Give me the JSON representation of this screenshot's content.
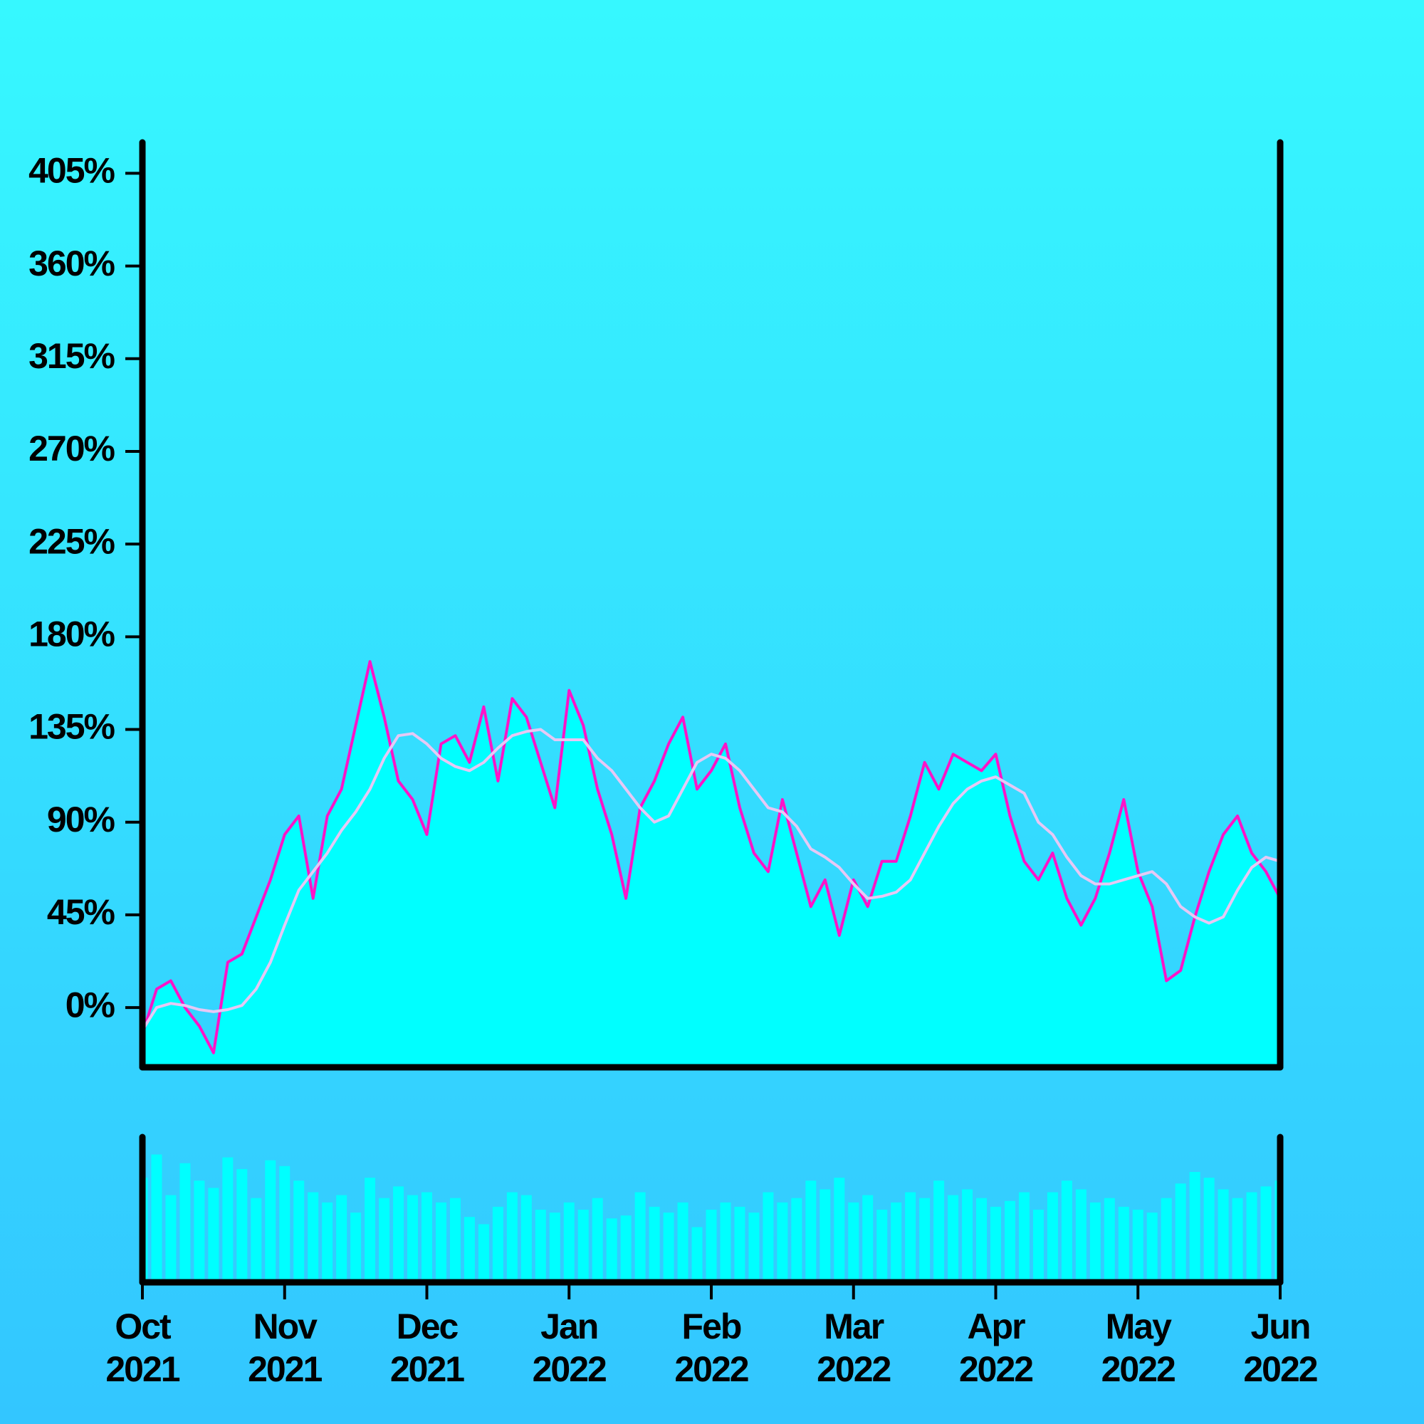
{
  "chart_data": [
    {
      "type": "line",
      "x": [
        0,
        0.1,
        0.2,
        0.3,
        0.4,
        0.5,
        0.6,
        0.7,
        0.8,
        0.9,
        1,
        1.1,
        1.2,
        1.3,
        1.4,
        1.5,
        1.6,
        1.7,
        1.8,
        1.9,
        2,
        2.1,
        2.2,
        2.3,
        2.4,
        2.5,
        2.6,
        2.7,
        2.8,
        2.9,
        3,
        3.1,
        3.2,
        3.3,
        3.4,
        3.5,
        3.6,
        3.7,
        3.8,
        3.9,
        4,
        4.1,
        4.2,
        4.3,
        4.4,
        4.5,
        4.6,
        4.7,
        4.8,
        4.9,
        5,
        5.1,
        5.2,
        5.3,
        5.4,
        5.5,
        5.6,
        5.7,
        5.8,
        5.9,
        6,
        6.1,
        6.2,
        6.3,
        6.4,
        6.5,
        6.6,
        6.7,
        6.8,
        6.9,
        7,
        7.1,
        7.2,
        7.3,
        7.4,
        7.5,
        7.6,
        7.7,
        7.8,
        7.9,
        8
      ],
      "series": [
        {
          "color": "#ff14c8",
          "area_color": "#00ffff",
          "values": [
            -13,
            9,
            13,
            0,
            -9,
            -22,
            22,
            26,
            44,
            62,
            84,
            93,
            53,
            93,
            106,
            137,
            168,
            141,
            110,
            101,
            84,
            128,
            132,
            119,
            146,
            110,
            150,
            141,
            119,
            97,
            154,
            137,
            106,
            84,
            53,
            97,
            110,
            128,
            141,
            106,
            115,
            128,
            97,
            75,
            66,
            101,
            75,
            49,
            62,
            35,
            62,
            49,
            71,
            71,
            93,
            119,
            106,
            123,
            119,
            115,
            123,
            93,
            71,
            62,
            75,
            53,
            40,
            53,
            75,
            101,
            66,
            49,
            13,
            18,
            44,
            66,
            84,
            93,
            75,
            66,
            53
          ]
        },
        {
          "color": "#e6c8f5",
          "values": [
            -11,
            0,
            2,
            1,
            -1,
            -2,
            -1,
            1,
            9,
            22,
            40,
            57,
            66,
            75,
            86,
            95,
            106,
            121,
            132,
            133,
            128,
            121,
            117,
            115,
            119,
            126,
            132,
            134,
            135,
            130,
            130,
            130,
            121,
            115,
            106,
            97,
            90,
            93,
            106,
            119,
            123,
            121,
            115,
            106,
            97,
            95,
            88,
            77,
            73,
            68,
            60,
            53,
            54,
            56,
            62,
            75,
            88,
            99,
            106,
            110,
            112,
            108,
            104,
            90,
            84,
            73,
            64,
            60,
            60,
            62,
            64,
            66,
            60,
            49,
            44,
            41,
            44,
            57,
            68,
            73,
            71
          ]
        }
      ],
      "xlim": [
        0,
        8
      ],
      "ylim": [
        -29,
        420
      ],
      "yticks": [
        {
          "value": 0,
          "label": "0%"
        },
        {
          "value": 45,
          "label": "45%"
        },
        {
          "value": 90,
          "label": "90%"
        },
        {
          "value": 135,
          "label": "135%"
        },
        {
          "value": 180,
          "label": "180%"
        },
        {
          "value": 225,
          "label": "225%"
        },
        {
          "value": 270,
          "label": "270%"
        },
        {
          "value": 315,
          "label": "315%"
        },
        {
          "value": 360,
          "label": "360%"
        },
        {
          "value": 405,
          "label": "405%"
        }
      ],
      "grid": false
    },
    {
      "type": "bar",
      "x": [
        0,
        0.1,
        0.2,
        0.3,
        0.4,
        0.5,
        0.6,
        0.7,
        0.8,
        0.9,
        1,
        1.1,
        1.2,
        1.3,
        1.4,
        1.5,
        1.6,
        1.7,
        1.8,
        1.9,
        2,
        2.1,
        2.2,
        2.3,
        2.4,
        2.5,
        2.6,
        2.7,
        2.8,
        2.9,
        3,
        3.1,
        3.2,
        3.3,
        3.4,
        3.5,
        3.6,
        3.7,
        3.8,
        3.9,
        4,
        4.1,
        4.2,
        4.3,
        4.4,
        4.5,
        4.6,
        4.7,
        4.8,
        4.9,
        5,
        5.1,
        5.2,
        5.3,
        5.4,
        5.5,
        5.6,
        5.7,
        5.8,
        5.9,
        6,
        6.1,
        6.2,
        6.3,
        6.4,
        6.5,
        6.6,
        6.7,
        6.8,
        6.9,
        7,
        7.1,
        7.2,
        7.3,
        7.4,
        7.5,
        7.6,
        7.7,
        7.8,
        7.9,
        8
      ],
      "values": [
        72,
        88,
        60,
        82,
        70,
        65,
        86,
        78,
        58,
        84,
        80,
        70,
        62,
        55,
        60,
        48,
        72,
        58,
        66,
        60,
        62,
        55,
        58,
        45,
        40,
        52,
        62,
        60,
        50,
        48,
        55,
        50,
        58,
        44,
        46,
        62,
        52,
        48,
        55,
        38,
        50,
        55,
        52,
        48,
        62,
        55,
        58,
        70,
        64,
        72,
        55,
        60,
        50,
        55,
        62,
        58,
        70,
        60,
        64,
        58,
        52,
        56,
        62,
        50,
        62,
        70,
        64,
        55,
        58,
        52,
        50,
        48,
        58,
        68,
        76,
        72,
        64,
        58,
        62,
        66,
        70
      ],
      "color": "#00ffff",
      "xlim": [
        0,
        8
      ],
      "ylim": [
        0,
        100
      ],
      "xticks": [
        {
          "value": 0,
          "label": [
            "Oct",
            "2021"
          ]
        },
        {
          "value": 1,
          "label": [
            "Nov",
            "2021"
          ]
        },
        {
          "value": 2,
          "label": [
            "Dec",
            "2021"
          ]
        },
        {
          "value": 3,
          "label": [
            "Jan",
            "2022"
          ]
        },
        {
          "value": 4,
          "label": [
            "Feb",
            "2022"
          ]
        },
        {
          "value": 5,
          "label": [
            "Mar",
            "2022"
          ]
        },
        {
          "value": 6,
          "label": [
            "Apr",
            "2022"
          ]
        },
        {
          "value": 7,
          "label": [
            "May",
            "2022"
          ]
        },
        {
          "value": 8,
          "label": [
            "Jun",
            "2022"
          ]
        }
      ]
    }
  ]
}
